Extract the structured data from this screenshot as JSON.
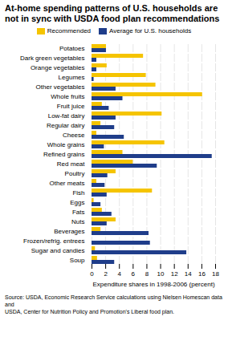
{
  "chart_data": {
    "type": "bar",
    "orientation": "horizontal",
    "title": "At-home spending patterns of U.S. households are not in sync with USDA food plan recommendations",
    "categories": [
      "Potatoes",
      "Dark green vegetables",
      "Orange vegetables",
      "Legumes",
      "Other vegetables",
      "Whole fruits",
      "Fruit juice",
      "Low-fat dairy",
      "Regular dairy",
      "Cheese",
      "Whole grains",
      "Refined grains",
      "Red meat",
      "Poultry",
      "Other meats",
      "Fish",
      "Eggs",
      "Fats",
      "Nuts",
      "Beverages",
      "Frozen/refrig. entrees",
      "Sugar and candies",
      "Soup"
    ],
    "series": [
      {
        "name": "Recommended",
        "color": "#f5c400",
        "values": [
          2.1,
          7.5,
          2.2,
          7.9,
          9.3,
          16.1,
          1.5,
          10.2,
          1.3,
          0.7,
          10.6,
          4.5,
          6.0,
          3.5,
          0.7,
          8.8,
          0.3,
          1.5,
          3.5,
          1.3,
          0.0,
          0.5,
          0.8
        ]
      },
      {
        "name": "Average for U.S. households",
        "color": "#1f3d8a",
        "values": [
          2.1,
          0.7,
          0.7,
          0.3,
          3.5,
          4.5,
          2.5,
          3.5,
          3.3,
          4.7,
          1.8,
          17.5,
          9.5,
          2.3,
          1.9,
          2.2,
          1.3,
          2.9,
          2.2,
          8.3,
          8.5,
          13.8,
          3.3
        ]
      }
    ],
    "xlabel": "Expenditure shares in 1998-2006 (percent)",
    "xlim": [
      0,
      18
    ],
    "xticks": [
      0,
      2,
      4,
      6,
      8,
      10,
      12,
      14,
      16,
      18
    ],
    "grid": true,
    "legend": "top",
    "source": "Source: USDA, Economic Research Service calculations using Nielsen Homescan data and\nUSDA, Center for Nutrition Policy and Promotion's Liberal food plan."
  }
}
